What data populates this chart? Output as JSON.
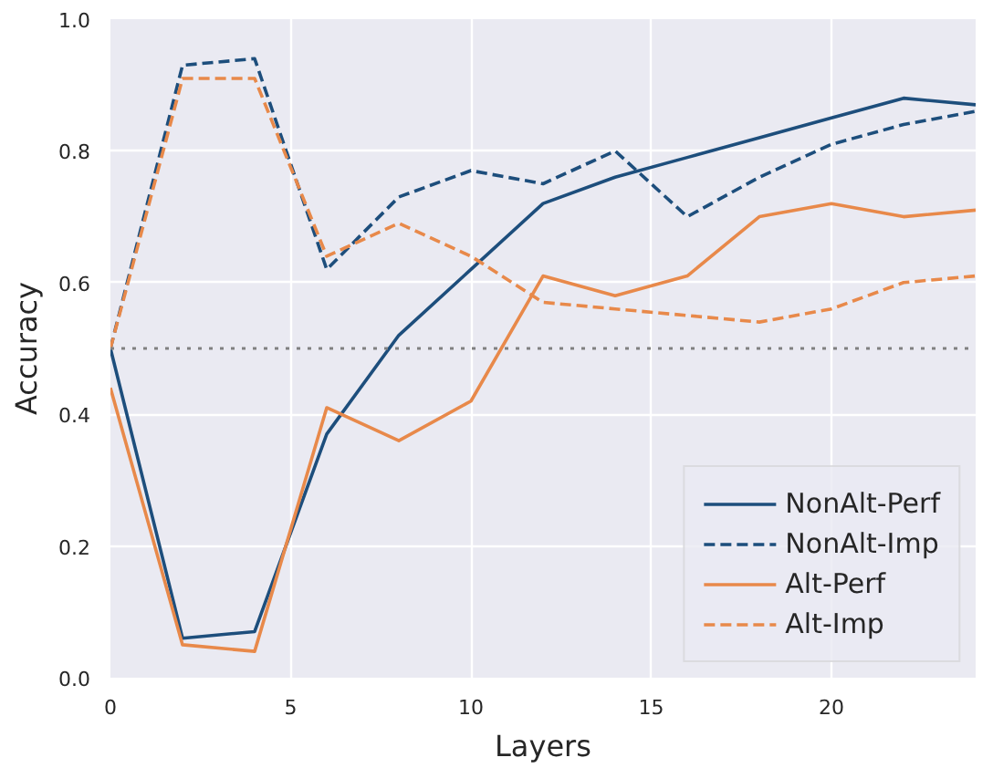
{
  "chart_data": {
    "type": "line",
    "xlabel": "Layers",
    "ylabel": "Accuracy",
    "x": [
      0,
      2,
      4,
      6,
      8,
      10,
      12,
      14,
      16,
      18,
      20,
      22,
      24
    ],
    "series": [
      {
        "name": "NonAlt-Perf",
        "color": "#1d4e7c",
        "line_style": "solid",
        "values": [
          0.5,
          0.06,
          0.07,
          0.37,
          0.52,
          0.62,
          0.72,
          0.76,
          0.79,
          0.82,
          0.85,
          0.88,
          0.87
        ]
      },
      {
        "name": "NonAlt-Imp",
        "color": "#1d4e7c",
        "line_style": "dashed",
        "values": [
          0.5,
          0.93,
          0.94,
          0.62,
          0.73,
          0.77,
          0.75,
          0.8,
          0.7,
          0.76,
          0.81,
          0.84,
          0.86
        ]
      },
      {
        "name": "Alt-Perf",
        "color": "#e8894a",
        "line_style": "solid",
        "values": [
          0.44,
          0.05,
          0.04,
          0.41,
          0.36,
          0.42,
          0.61,
          0.58,
          0.61,
          0.7,
          0.72,
          0.7,
          0.71
        ]
      },
      {
        "name": "Alt-Imp",
        "color": "#e8894a",
        "line_style": "dashed",
        "values": [
          0.5,
          0.91,
          0.91,
          0.64,
          0.69,
          0.64,
          0.57,
          0.56,
          0.55,
          0.54,
          0.56,
          0.6,
          0.61
        ]
      }
    ],
    "xlim": [
      0,
      24
    ],
    "xticks": [
      0,
      5,
      10,
      15,
      20
    ],
    "ylim": [
      0,
      1
    ],
    "yticks": [
      {
        "value": 0,
        "label": "0.0"
      },
      {
        "value": 0.2,
        "label": "0.2"
      },
      {
        "value": 0.4,
        "label": "0.4"
      },
      {
        "value": 0.6,
        "label": "0.6"
      },
      {
        "value": 0.8,
        "label": "0.8"
      },
      {
        "value": 1,
        "label": "1.0"
      }
    ],
    "ref_lines": [
      {
        "axis": "y",
        "value": 0.5,
        "color": "#808080",
        "line_style": "dotted"
      }
    ],
    "grid": true,
    "legend": "bottom right",
    "marker": "none"
  }
}
